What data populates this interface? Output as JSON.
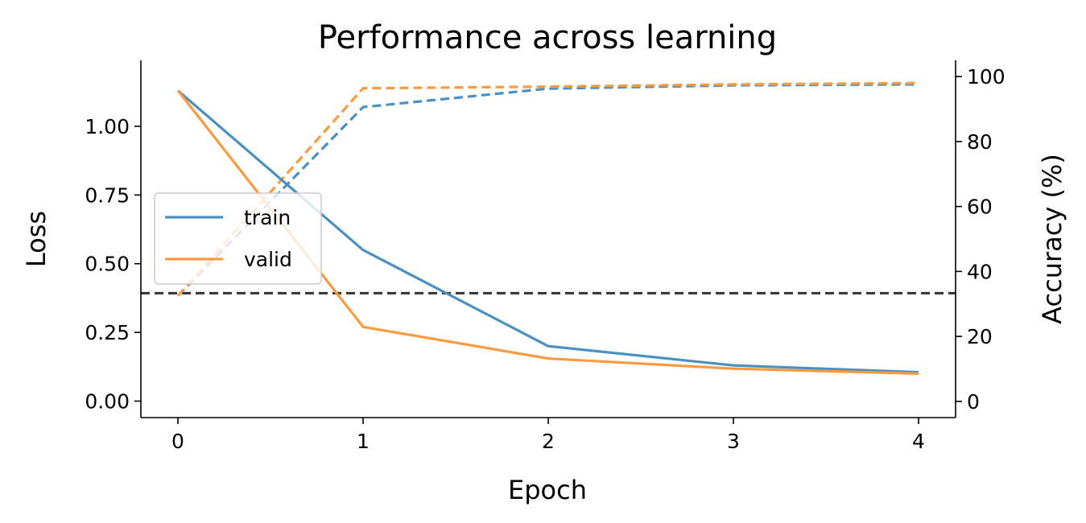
{
  "chart_data": {
    "type": "line",
    "title": "Performance across learning",
    "xlabel": "Epoch",
    "ylabel_left": "Loss",
    "ylabel_right": "Accuracy (%)",
    "x": [
      0,
      1,
      2,
      3,
      4
    ],
    "xticks": [
      "0",
      "1",
      "2",
      "3",
      "4"
    ],
    "xlim": [
      -0.2,
      4.2
    ],
    "ylim_left": [
      -0.06,
      1.24
    ],
    "yticks_left": [
      "0.00",
      "0.25",
      "0.50",
      "0.75",
      "1.00"
    ],
    "yticks_left_values": [
      0,
      0.25,
      0.5,
      0.75,
      1.0
    ],
    "ylim_right": [
      -5,
      105
    ],
    "yticks_right": [
      "0",
      "20",
      "40",
      "60",
      "80",
      "100"
    ],
    "yticks_right_values": [
      0,
      20,
      40,
      60,
      80,
      100
    ],
    "colors": {
      "train": "#4a90c2",
      "valid": "#fb9a3e",
      "chance": "#333333"
    },
    "loss_series": [
      {
        "name": "train",
        "values": [
          1.13,
          0.55,
          0.2,
          0.13,
          0.105
        ]
      },
      {
        "name": "valid",
        "values": [
          1.13,
          0.27,
          0.155,
          0.118,
          0.1
        ]
      }
    ],
    "accuracy_series": [
      {
        "series": "train",
        "values": [
          32.5,
          90.6,
          96.3,
          97.3,
          97.6
        ]
      },
      {
        "series": "valid",
        "values": [
          32.5,
          96.4,
          96.9,
          97.6,
          98.0
        ]
      }
    ],
    "chance_level": 33.3,
    "legend": {
      "position": "center-left",
      "entries": [
        "train",
        "valid"
      ]
    }
  }
}
